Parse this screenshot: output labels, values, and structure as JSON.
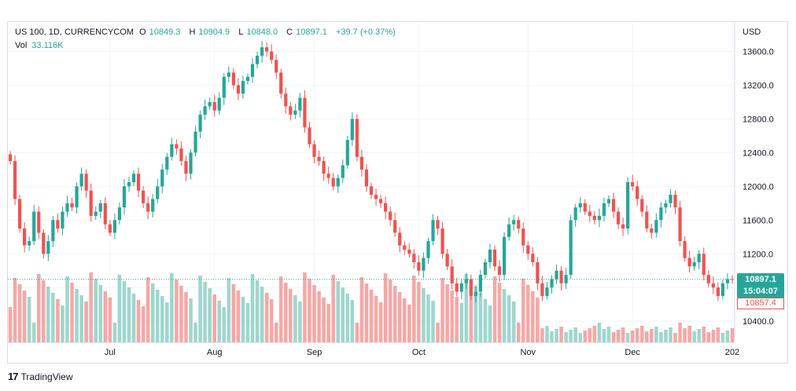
{
  "legend": {
    "symbol": "US 100, 1D, CURRENCYCOM",
    "open_label": "O",
    "open": "10849.3",
    "high_label": "H",
    "high": "10904.9",
    "low_label": "L",
    "low": "10848.0",
    "close_label": "C",
    "close": "10897.1",
    "change": "+39.7 (+0.37%)",
    "volume_label": "Vol",
    "volume_value": "33.116K"
  },
  "price_axis": {
    "currency": "USD",
    "last_price": "10897.1",
    "countdown": "15:04:07",
    "prev_close": "10857.4"
  },
  "footer": {
    "brand": "TradingView",
    "logo_glyph": "17"
  },
  "colors": {
    "up": "#26a69a",
    "down": "#ef5350",
    "up_volume": "#9fd6ce",
    "down_volume": "#f5a8a6",
    "grid": "#f0f3fa"
  },
  "chart_data": {
    "type": "candlestick",
    "ylim": [
      10150,
      13950
    ],
    "yticks": [
      10400,
      10800,
      11200,
      11600,
      12000,
      12400,
      12800,
      13200,
      13600
    ],
    "ytick_labels": [
      "10400.0",
      "10800.0",
      "11200.0",
      "11600.0",
      "12000.0",
      "12400.0",
      "12800.0",
      "13200.0",
      "13600.0"
    ],
    "xticks": [
      {
        "label": "Jul",
        "index": 21
      },
      {
        "label": "Aug",
        "index": 43
      },
      {
        "label": "Sep",
        "index": 64
      },
      {
        "label": "Oct",
        "index": 86
      },
      {
        "label": "Nov",
        "index": 109
      },
      {
        "label": "Dec",
        "index": 131
      },
      {
        "label": "202",
        "index": 152
      }
    ],
    "closes": [
      12300,
      11850,
      11500,
      11300,
      11350,
      11700,
      11450,
      11200,
      11350,
      11600,
      11500,
      11700,
      11800,
      11750,
      12000,
      12150,
      11950,
      11650,
      11700,
      11800,
      11550,
      11450,
      11600,
      11750,
      12000,
      12050,
      12150,
      11950,
      11800,
      11700,
      11850,
      12000,
      12200,
      12350,
      12500,
      12450,
      12300,
      12150,
      12400,
      12650,
      12850,
      12950,
      13000,
      12900,
      13050,
      13300,
      13350,
      13200,
      13100,
      13250,
      13300,
      13450,
      13550,
      13650,
      13600,
      13500,
      13350,
      13100,
      12950,
      12850,
      12900,
      13050,
      12700,
      12500,
      12350,
      12300,
      12150,
      12100,
      12000,
      12100,
      12250,
      12550,
      12800,
      12350,
      12200,
      12000,
      11900,
      11850,
      11800,
      11700,
      11600,
      11450,
      11300,
      11250,
      11200,
      11100,
      11000,
      11150,
      11350,
      11600,
      11500,
      11200,
      11050,
      10850,
      10750,
      10850,
      10900,
      10700,
      10750,
      10950,
      11100,
      11250,
      11050,
      10950,
      11400,
      11550,
      11600,
      11500,
      11300,
      11200,
      11100,
      10850,
      10700,
      10800,
      10900,
      11000,
      10850,
      10950,
      11600,
      11750,
      11800,
      11700,
      11650,
      11600,
      11650,
      11800,
      11850,
      11700,
      11550,
      11500,
      12050,
      12000,
      11850,
      11700,
      11500,
      11450,
      11600,
      11750,
      11800,
      11900,
      11750,
      11350,
      11150,
      11050,
      11100,
      11200,
      10950,
      10850,
      10800,
      10700,
      10850,
      10900,
      10897
    ]
  }
}
